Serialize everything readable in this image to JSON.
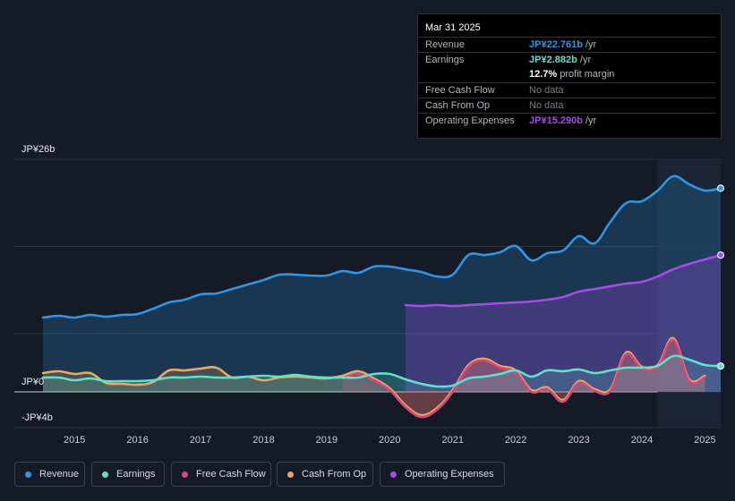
{
  "tooltip": {
    "date": "Mar 31 2025",
    "rows": [
      {
        "label": "Revenue",
        "value": "JP¥22.761b",
        "unit": " /yr",
        "color": "#2f95e8"
      },
      {
        "label": "Earnings",
        "value": "JP¥2.882b",
        "unit": " /yr",
        "color": "#5ee1cc"
      },
      {
        "label": "",
        "value": "12.7%",
        "unit": " profit margin",
        "color": "#ffffff"
      },
      {
        "label": "Free Cash Flow",
        "value": "No data",
        "unit": "",
        "color": "#777d86"
      },
      {
        "label": "Cash From Op",
        "value": "No data",
        "unit": "",
        "color": "#777d86"
      },
      {
        "label": "Operating Expenses",
        "value": "JP¥15.290b",
        "unit": " /yr",
        "color": "#a64ae8"
      }
    ]
  },
  "legend": [
    {
      "label": "Revenue",
      "color": "#2f95e8"
    },
    {
      "label": "Earnings",
      "color": "#5ee1cc"
    },
    {
      "label": "Free Cash Flow",
      "color": "#d5487a"
    },
    {
      "label": "Cash From Op",
      "color": "#e9a862"
    },
    {
      "label": "Operating Expenses",
      "color": "#a64ae8"
    }
  ],
  "chart_data": {
    "type": "area",
    "title": "",
    "currency": "JP¥",
    "y_labels": [
      "JP¥26b",
      "JP¥0",
      "-JP¥4b"
    ],
    "ylim": [
      -4,
      26
    ],
    "xlim": [
      2014.5,
      2025.25
    ],
    "x_ticks": [
      "2015",
      "2016",
      "2017",
      "2018",
      "2019",
      "2020",
      "2021",
      "2022",
      "2023",
      "2024",
      "2025"
    ],
    "highlight_from": 2024.25,
    "series": [
      {
        "name": "Revenue",
        "color": "#2f95e8",
        "x": [
          2014.5,
          2014.75,
          2015.0,
          2015.25,
          2015.5,
          2015.75,
          2016.0,
          2016.25,
          2016.5,
          2016.75,
          2017.0,
          2017.25,
          2017.5,
          2017.75,
          2018.0,
          2018.25,
          2018.5,
          2018.75,
          2019.0,
          2019.25,
          2019.5,
          2019.75,
          2020.0,
          2020.25,
          2020.5,
          2020.75,
          2021.0,
          2021.25,
          2021.5,
          2021.75,
          2022.0,
          2022.25,
          2022.5,
          2022.75,
          2023.0,
          2023.25,
          2023.5,
          2023.75,
          2024.0,
          2024.25,
          2024.5,
          2024.75,
          2025.0,
          2025.25
        ],
        "values": [
          8.3,
          8.5,
          8.3,
          8.6,
          8.4,
          8.6,
          8.7,
          9.3,
          10.0,
          10.3,
          10.9,
          11.0,
          11.5,
          12.0,
          12.5,
          13.1,
          13.1,
          13.0,
          13.0,
          13.5,
          13.3,
          14.0,
          14.0,
          13.7,
          13.4,
          12.9,
          13.1,
          15.3,
          15.3,
          15.6,
          16.3,
          14.7,
          15.5,
          15.8,
          17.4,
          16.6,
          19.0,
          21.1,
          21.3,
          22.5,
          24.1,
          23.2,
          22.5,
          22.761
        ]
      },
      {
        "name": "Earnings",
        "color": "#5ee1cc",
        "x": [
          2014.5,
          2014.75,
          2015.0,
          2015.25,
          2015.5,
          2015.75,
          2016.0,
          2016.25,
          2016.5,
          2016.75,
          2017.0,
          2017.25,
          2017.5,
          2017.75,
          2018.0,
          2018.25,
          2018.5,
          2018.75,
          2019.0,
          2019.25,
          2019.5,
          2019.75,
          2020.0,
          2020.25,
          2020.5,
          2020.75,
          2021.0,
          2021.25,
          2021.5,
          2021.75,
          2022.0,
          2022.25,
          2022.5,
          2022.75,
          2023.0,
          2023.25,
          2023.5,
          2023.75,
          2024.0,
          2024.25,
          2024.5,
          2024.75,
          2025.0,
          2025.25
        ],
        "values": [
          1.6,
          1.6,
          1.3,
          1.5,
          1.2,
          1.2,
          1.2,
          1.3,
          1.6,
          1.6,
          1.7,
          1.6,
          1.6,
          1.7,
          1.8,
          1.7,
          1.9,
          1.7,
          1.6,
          1.6,
          1.6,
          2.0,
          2.0,
          1.4,
          0.9,
          0.6,
          0.7,
          1.5,
          1.7,
          2.0,
          2.4,
          1.7,
          2.4,
          2.3,
          2.5,
          2.1,
          2.4,
          2.7,
          2.7,
          2.9,
          4.0,
          3.6,
          3.0,
          2.882
        ]
      },
      {
        "name": "Cash From Op",
        "color": "#e9a862",
        "x": [
          2014.5,
          2014.75,
          2015.0,
          2015.25,
          2015.5,
          2015.75,
          2016.0,
          2016.25,
          2016.5,
          2016.75,
          2017.0,
          2017.25,
          2017.5,
          2017.75,
          2018.0,
          2018.25,
          2018.5,
          2018.75,
          2019.0,
          2019.25,
          2019.5,
          2019.75,
          2020.0,
          2020.25,
          2020.5,
          2020.75,
          2021.0,
          2021.25,
          2021.5,
          2021.75,
          2022.0,
          2022.25,
          2022.5,
          2022.75,
          2023.0,
          2023.25,
          2023.5,
          2023.75,
          2024.0,
          2024.25,
          2024.5,
          2024.75,
          2025.0
        ],
        "values": [
          2.1,
          2.3,
          2.0,
          2.1,
          1.0,
          0.9,
          0.8,
          1.1,
          2.4,
          2.4,
          2.6,
          2.7,
          1.6,
          1.7,
          1.3,
          1.6,
          1.7,
          1.6,
          1.5,
          1.8,
          2.3,
          1.5,
          0.4,
          -1.5,
          -2.6,
          -1.8,
          0.2,
          3.0,
          3.7,
          2.9,
          2.4,
          0.2,
          0.5,
          -0.9,
          1.2,
          0.3,
          0.3,
          4.4,
          2.8,
          3.0,
          6.0,
          1.4,
          1.8
        ]
      },
      {
        "name": "Free Cash Flow",
        "color": "#d5487a",
        "x": [
          2019.25,
          2019.5,
          2019.75,
          2020.0,
          2020.25,
          2020.5,
          2020.75,
          2021.0,
          2021.25,
          2021.5,
          2021.75,
          2022.0,
          2022.25,
          2022.5,
          2022.75,
          2023.0,
          2023.25,
          2023.5,
          2023.75,
          2024.0,
          2024.25,
          2024.5,
          2024.75,
          2025.0
        ],
        "values": [
          1.5,
          2.0,
          1.3,
          0.2,
          -1.7,
          -2.8,
          -2.0,
          0.0,
          2.8,
          3.5,
          2.7,
          2.2,
          0.0,
          0.3,
          -1.1,
          1.0,
          0.1,
          0.1,
          4.2,
          2.6,
          2.8,
          5.8,
          1.2,
          1.6
        ]
      },
      {
        "name": "Operating Expenses",
        "color": "#a64ae8",
        "x": [
          2020.25,
          2020.5,
          2020.75,
          2021.0,
          2021.25,
          2021.5,
          2021.75,
          2022.0,
          2022.25,
          2022.5,
          2022.75,
          2023.0,
          2023.25,
          2023.5,
          2023.75,
          2024.0,
          2024.25,
          2024.5,
          2024.75,
          2025.0,
          2025.25
        ],
        "values": [
          9.7,
          9.6,
          9.7,
          9.6,
          9.7,
          9.8,
          9.9,
          10.0,
          10.1,
          10.3,
          10.6,
          11.2,
          11.5,
          11.8,
          12.1,
          12.3,
          12.9,
          13.7,
          14.3,
          14.8,
          15.29
        ]
      }
    ]
  }
}
